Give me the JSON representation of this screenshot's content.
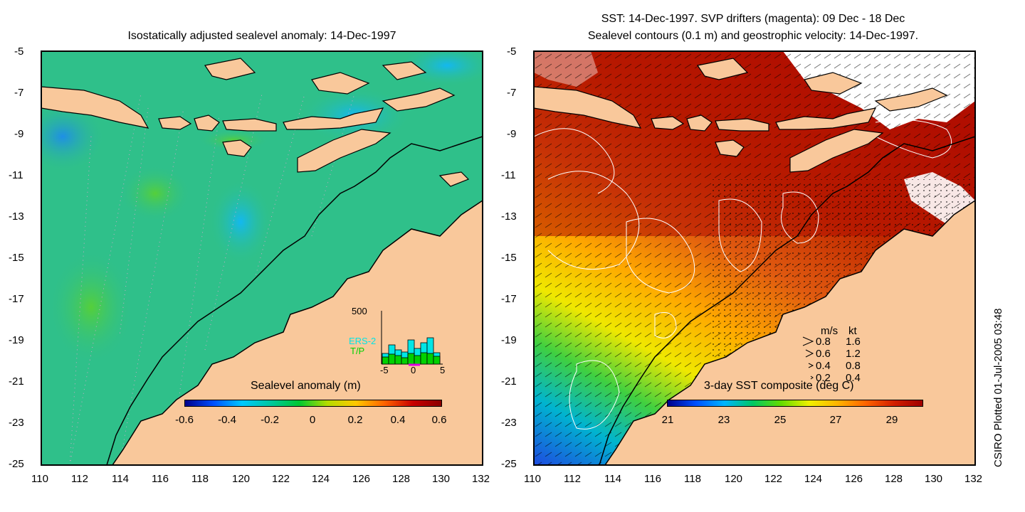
{
  "left_panel": {
    "title": "Isostatically adjusted sealevel anomaly: 14-Dec-1997",
    "y_ticks": [
      "-5",
      "-7",
      "-9",
      "-11",
      "-13",
      "-15",
      "-17",
      "-19",
      "-21",
      "-23",
      "-25"
    ],
    "x_ticks": [
      "110",
      "112",
      "114",
      "116",
      "118",
      "120",
      "122",
      "124",
      "126",
      "128",
      "130",
      "132"
    ],
    "colorbar": {
      "label": "Sealevel anomaly (m)",
      "ticks": [
        "-0.6",
        "-0.4",
        "-0.2",
        "0",
        "0.2",
        "0.4",
        "0.6"
      ],
      "colors": [
        "#00008b",
        "#0050ff",
        "#00c8ff",
        "#00c8a0",
        "#00c832",
        "#b4dc00",
        "#ffc800",
        "#ff6400",
        "#c80000",
        "#8b0000"
      ]
    },
    "histogram": {
      "ymax_label": "500",
      "legend": [
        "ERS-2",
        "T/P"
      ],
      "legend_colors": [
        "#00e6e6",
        "#00d200"
      ],
      "x_ticks": [
        "-5",
        "0",
        "5"
      ]
    },
    "colors": {
      "sea": "#2fc08a",
      "land": "#f9c89b"
    }
  },
  "right_panel": {
    "title_line1": "SST: 14-Dec-1997. SVP drifters (magenta): 09 Dec - 18 Dec",
    "title_line2": "Sealevel contours (0.1 m) and geostrophic velocity: 14-Dec-1997.",
    "y_ticks": [
      "-5",
      "-7",
      "-9",
      "-11",
      "-13",
      "-15",
      "-17",
      "-19",
      "-21",
      "-23",
      "-25"
    ],
    "x_ticks": [
      "110",
      "112",
      "114",
      "116",
      "118",
      "120",
      "122",
      "124",
      "126",
      "128",
      "130",
      "132"
    ],
    "colorbar": {
      "label": "3-day SST composite (deg C)",
      "ticks": [
        "21",
        "23",
        "25",
        "27",
        "29"
      ],
      "colors": [
        "#00008b",
        "#0050ff",
        "#00b4ff",
        "#00c864",
        "#64dc00",
        "#f0f000",
        "#ffb400",
        "#ff6400",
        "#d21e00",
        "#a00000"
      ]
    },
    "speed_legend": {
      "header_ms": "m/s",
      "header_kt": "kt",
      "rows": [
        {
          "ms": "0.8",
          "kt": "1.6"
        },
        {
          "ms": "0.6",
          "kt": "1.2"
        },
        {
          "ms": "0.4",
          "kt": "0.8"
        },
        {
          "ms": "0.2",
          "kt": "0.4"
        }
      ]
    },
    "colors": {
      "warm": "#b10f00",
      "land": "#f9c89b"
    }
  },
  "credit": "CSIRO Plotted 01-Jul-2005 03:48"
}
